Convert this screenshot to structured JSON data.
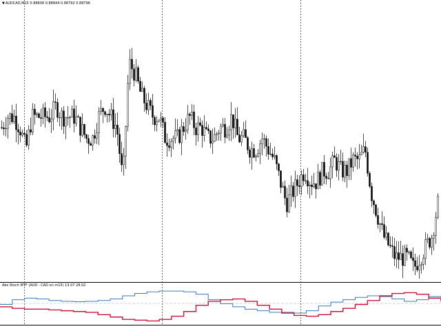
{
  "chart_window": {
    "symbol_line": {
      "symbol": "AUDCAD,M15",
      "open": "0.88808",
      "high": "0.88844",
      "low": "0.88792",
      "close": "0.88796"
    },
    "indicator_label": "Abs Stoch MTF (AUD - CAD on m15) 13.07 28.02"
  },
  "colors": {
    "background": "#ffffff",
    "candles": "#000000",
    "separators": "#000000",
    "aud_line": "#3a78b8",
    "cad_line": "#c8143c",
    "level_line": "#9aa8b8"
  },
  "chart_data": [
    {
      "type": "line",
      "title": "AUDCAD,M15",
      "series": [
        {
          "name": "price",
          "values": [
            0.8879,
            0.888,
            0.888,
            0.8879,
            0.8877,
            0.888,
            0.888,
            0.888,
            0.888,
            0.8881,
            0.888,
            0.888,
            0.888,
            0.8879,
            0.8878,
            0.8878,
            0.888,
            0.8881,
            0.888,
            0.8879,
            0.8874,
            0.8885,
            0.8884,
            0.8882,
            0.8881,
            0.888,
            0.888,
            0.8878,
            0.8878,
            0.8878,
            0.8879,
            0.888,
            0.8879,
            0.8879,
            0.8878,
            0.8878,
            0.8879,
            0.8879,
            0.888,
            0.8878,
            0.8878,
            0.8877,
            0.8877,
            0.8878,
            0.8877,
            0.8876,
            0.8874,
            0.8872,
            0.8873,
            0.8874,
            0.8875,
            0.8874,
            0.8874,
            0.8875,
            0.8875,
            0.8876,
            0.8875,
            0.8875,
            0.8876,
            0.8876,
            0.8877,
            0.8873,
            0.8871,
            0.8869,
            0.8868,
            0.8867,
            0.8867,
            0.8867,
            0.8866,
            0.8867,
            0.8868,
            0.8869,
            0.8872
          ]
        }
      ]
    },
    {
      "type": "line",
      "title": "Abs Stoch MTF (AUD - CAD on m15) 13.07 28.02",
      "series": [
        {
          "name": "AUD",
          "values": [
            50,
            62,
            66,
            64,
            60,
            58,
            57,
            58,
            60,
            64,
            72,
            78,
            82,
            84,
            84,
            82,
            76,
            62,
            52,
            44,
            38,
            34,
            30,
            30,
            28,
            34,
            46,
            56,
            62,
            68,
            72,
            70,
            64,
            58,
            62,
            70,
            72
          ]
        },
        {
          "name": "CAD",
          "values": [
            44,
            40,
            38,
            38,
            36,
            34,
            32,
            30,
            24,
            18,
            12,
            10,
            8,
            12,
            20,
            32,
            48,
            58,
            62,
            64,
            58,
            48,
            38,
            28,
            22,
            20,
            24,
            32,
            40,
            50,
            60,
            72,
            78,
            80,
            76,
            66,
            58
          ]
        }
      ]
    }
  ]
}
